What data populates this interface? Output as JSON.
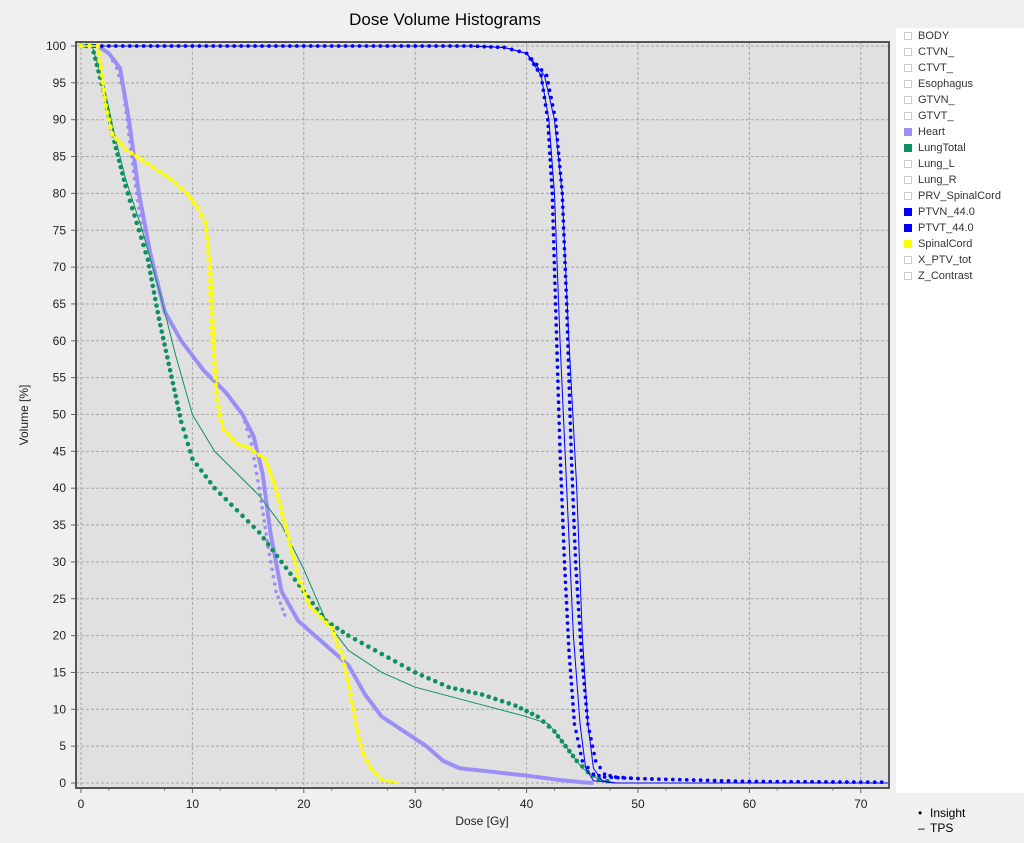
{
  "chart_data": {
    "type": "line",
    "title": "Dose Volume Histograms",
    "xlabel": "Dose [Gy]",
    "ylabel": "Volume [%]",
    "xlim": [
      0,
      72.5
    ],
    "ylim": [
      0,
      100
    ],
    "xticks": [
      0,
      10,
      20,
      30,
      40,
      50,
      60,
      70
    ],
    "yticks": [
      0,
      5,
      10,
      15,
      20,
      25,
      30,
      35,
      40,
      45,
      50,
      55,
      60,
      65,
      70,
      75,
      80,
      85,
      90,
      95,
      100
    ],
    "grid": true,
    "legend_position": "right",
    "line_styles": [
      {
        "name": "Insight",
        "marker": "•",
        "style": "dotted"
      },
      {
        "name": "TPS",
        "marker": "–",
        "style": "solid"
      }
    ],
    "structures": [
      {
        "name": "BODY",
        "visible": false,
        "color": "#ffffff"
      },
      {
        "name": "CTVN_",
        "visible": false,
        "color": "#ffffff"
      },
      {
        "name": "CTVT_",
        "visible": false,
        "color": "#ffffff"
      },
      {
        "name": "Esophagus",
        "visible": false,
        "color": "#ffffff"
      },
      {
        "name": "GTVN_",
        "visible": false,
        "color": "#ffffff"
      },
      {
        "name": "GTVT_",
        "visible": false,
        "color": "#ffffff"
      },
      {
        "name": "Heart",
        "visible": true,
        "color": "#9b8ff5"
      },
      {
        "name": "LungTotal",
        "visible": true,
        "color": "#0d9160"
      },
      {
        "name": "Lung_L",
        "visible": false,
        "color": "#ffffff"
      },
      {
        "name": "Lung_R",
        "visible": false,
        "color": "#ffffff"
      },
      {
        "name": "PRV_SpinalCord",
        "visible": false,
        "color": "#ffffff"
      },
      {
        "name": "PTVN_44.0",
        "visible": true,
        "color": "#0000ff"
      },
      {
        "name": "PTVT_44.0",
        "visible": true,
        "color": "#0000ff"
      },
      {
        "name": "SpinalCord",
        "visible": true,
        "color": "#ffff00"
      },
      {
        "name": "X_PTV_tot",
        "visible": false,
        "color": "#ffffff"
      },
      {
        "name": "Z_Contrast",
        "visible": false,
        "color": "#ffffff"
      }
    ],
    "series": [
      {
        "name": "Heart (TPS)",
        "color": "#9b8ff5",
        "style": "solid",
        "width": 4,
        "x": [
          0,
          1.5,
          2.5,
          3.5,
          4.3,
          5.2,
          6.2,
          7.5,
          9,
          11,
          13,
          14.5,
          15.5,
          16.3,
          17,
          18,
          19.5,
          21,
          22.5,
          24,
          25.5,
          27,
          29,
          31,
          32.5,
          34,
          37,
          40,
          43,
          45,
          46
        ],
        "y": [
          100,
          100,
          99,
          97,
          90,
          80,
          72,
          64,
          60,
          56,
          53,
          50,
          47,
          42,
          34,
          26,
          22,
          20,
          18,
          16,
          12,
          9,
          7,
          5,
          3,
          2,
          1.5,
          1,
          0.4,
          0.1,
          0
        ]
      },
      {
        "name": "Heart (Insight)",
        "color": "#9b8ff5",
        "style": "dotted",
        "width": 3,
        "x": [
          0,
          1.5,
          2.5,
          3.2,
          3.8,
          4.3,
          4.8,
          5.5,
          6.5,
          7.5,
          9,
          11,
          13,
          14.5,
          15.3,
          16,
          16.8,
          17.5,
          18.5
        ],
        "y": [
          100,
          100,
          99,
          97,
          94,
          88,
          82,
          75,
          70,
          64,
          60,
          56,
          53,
          50,
          46,
          40,
          32,
          26,
          22
        ]
      },
      {
        "name": "LungTotal (TPS)",
        "color": "#0d9160",
        "style": "solid",
        "width": 1,
        "x": [
          0,
          1,
          2,
          3,
          4,
          5.5,
          7,
          8.5,
          10,
          12,
          14,
          16,
          18,
          20,
          22,
          24,
          27,
          30,
          35,
          40,
          42,
          43.5,
          45,
          46.5,
          47.5
        ],
        "y": [
          100,
          100,
          95,
          88,
          82,
          75,
          67,
          58,
          50,
          45,
          42,
          39,
          35,
          29,
          22,
          18,
          15,
          13,
          11,
          9,
          8,
          5,
          2,
          0.5,
          0
        ]
      },
      {
        "name": "LungTotal (Insight)",
        "color": "#0d9160",
        "style": "dotted",
        "width": 4,
        "x": [
          0,
          1,
          2,
          3,
          4,
          5,
          6,
          7,
          8,
          9,
          10,
          12,
          14,
          16,
          18,
          20,
          22,
          24,
          27,
          30,
          33,
          36,
          39,
          41,
          42.5,
          43.5,
          44.5,
          45.5,
          46.5,
          48
        ],
        "y": [
          100,
          100,
          94,
          87,
          81,
          76,
          71,
          63,
          56,
          49,
          44,
          40,
          37,
          34,
          30,
          26,
          22,
          20,
          17.5,
          15,
          13,
          12,
          10.5,
          9,
          7,
          5,
          3,
          1.5,
          0.5,
          0
        ]
      },
      {
        "name": "PTVN_44.0 (TPS)",
        "color": "#0000ff",
        "style": "solid",
        "width": 1,
        "x": [
          0,
          30,
          35,
          38,
          40,
          41.3,
          42,
          42.5,
          43,
          43.6,
          44.2,
          44.8,
          45.3,
          46,
          48,
          72.5
        ],
        "y": [
          100,
          100,
          100,
          99.8,
          99,
          96,
          90,
          80,
          60,
          40,
          20,
          8,
          2,
          0.3,
          0,
          0
        ]
      },
      {
        "name": "PTVT_44.0 (TPS)",
        "color": "#0000ff",
        "style": "solid",
        "width": 1,
        "x": [
          0,
          30,
          35,
          38,
          40,
          41.6,
          42.5,
          43.2,
          43.8,
          44.5,
          45,
          45.5,
          46,
          46.8,
          48,
          72.5
        ],
        "y": [
          100,
          100,
          100,
          99.8,
          99,
          96,
          90,
          80,
          60,
          40,
          20,
          8,
          2,
          0.3,
          0,
          0
        ]
      },
      {
        "name": "PTVN_44.0 (Insight)",
        "color": "#0000ff",
        "style": "dotted",
        "width": 3,
        "x": [
          0,
          30,
          35,
          38,
          40,
          41.3,
          41.9,
          42.3,
          42.6,
          43,
          43.4,
          43.8,
          44.3,
          45,
          46,
          47,
          50,
          55,
          60,
          72.5
        ],
        "y": [
          100,
          100,
          100,
          99.8,
          99,
          96,
          90,
          80,
          65,
          45,
          30,
          18,
          8,
          3,
          1.2,
          0.8,
          0.6,
          0.4,
          0.2,
          0.1
        ]
      },
      {
        "name": "PTVT_44.0 (Insight)",
        "color": "#0000ff",
        "style": "dotted",
        "width": 3,
        "x": [
          0,
          30,
          35,
          38,
          40,
          41.8,
          42.6,
          43.2,
          43.6,
          44,
          44.4,
          44.9,
          45.5,
          46.2,
          47,
          48,
          50,
          55,
          60,
          72.5
        ],
        "y": [
          100,
          100,
          100,
          99.8,
          99,
          96,
          90,
          80,
          65,
          45,
          30,
          18,
          8,
          3,
          1.2,
          0.8,
          0.6,
          0.4,
          0.2,
          0.1
        ]
      },
      {
        "name": "SpinalCord (TPS)",
        "color": "#ffff00",
        "style": "solid",
        "width": 1.5,
        "x": [
          0,
          1.5,
          1.8,
          2.2,
          2.8,
          4,
          6,
          8,
          9.5,
          10.5,
          11.2,
          11.7,
          12,
          12.3,
          12.8,
          14,
          15,
          16.5,
          17.5,
          18.5,
          19.5,
          20.5,
          21.5,
          22.5,
          23.5,
          24.2,
          24.8,
          25.3,
          26,
          27,
          28.5
        ],
        "y": [
          100,
          100,
          97,
          92,
          88,
          86,
          84,
          82,
          80,
          78,
          76,
          70,
          60,
          50,
          48,
          46,
          45.5,
          44,
          40,
          34,
          28,
          24,
          22.5,
          21,
          17,
          12,
          7,
          4,
          2,
          0.5,
          0
        ]
      },
      {
        "name": "SpinalCord (Insight)",
        "color": "#ffff00",
        "style": "dotted",
        "width": 4,
        "x": [
          0,
          1.5,
          1.8,
          2.2,
          2.8,
          4,
          6,
          8,
          9.5,
          10.5,
          11.2,
          11.5,
          11.8,
          12.2,
          12.8,
          14,
          15,
          16.5,
          17.5,
          18.5,
          19.5,
          20.5,
          21.5,
          22.5,
          23.5,
          24.2,
          24.8,
          25.3,
          26,
          27,
          28.5
        ],
        "y": [
          100,
          100,
          97,
          92,
          88,
          86,
          84,
          82,
          80,
          78,
          76,
          70,
          60,
          52,
          48,
          46,
          45.5,
          44,
          40,
          34,
          28,
          24,
          22.5,
          21,
          17,
          12,
          7,
          4,
          2,
          0.5,
          0
        ]
      }
    ]
  }
}
